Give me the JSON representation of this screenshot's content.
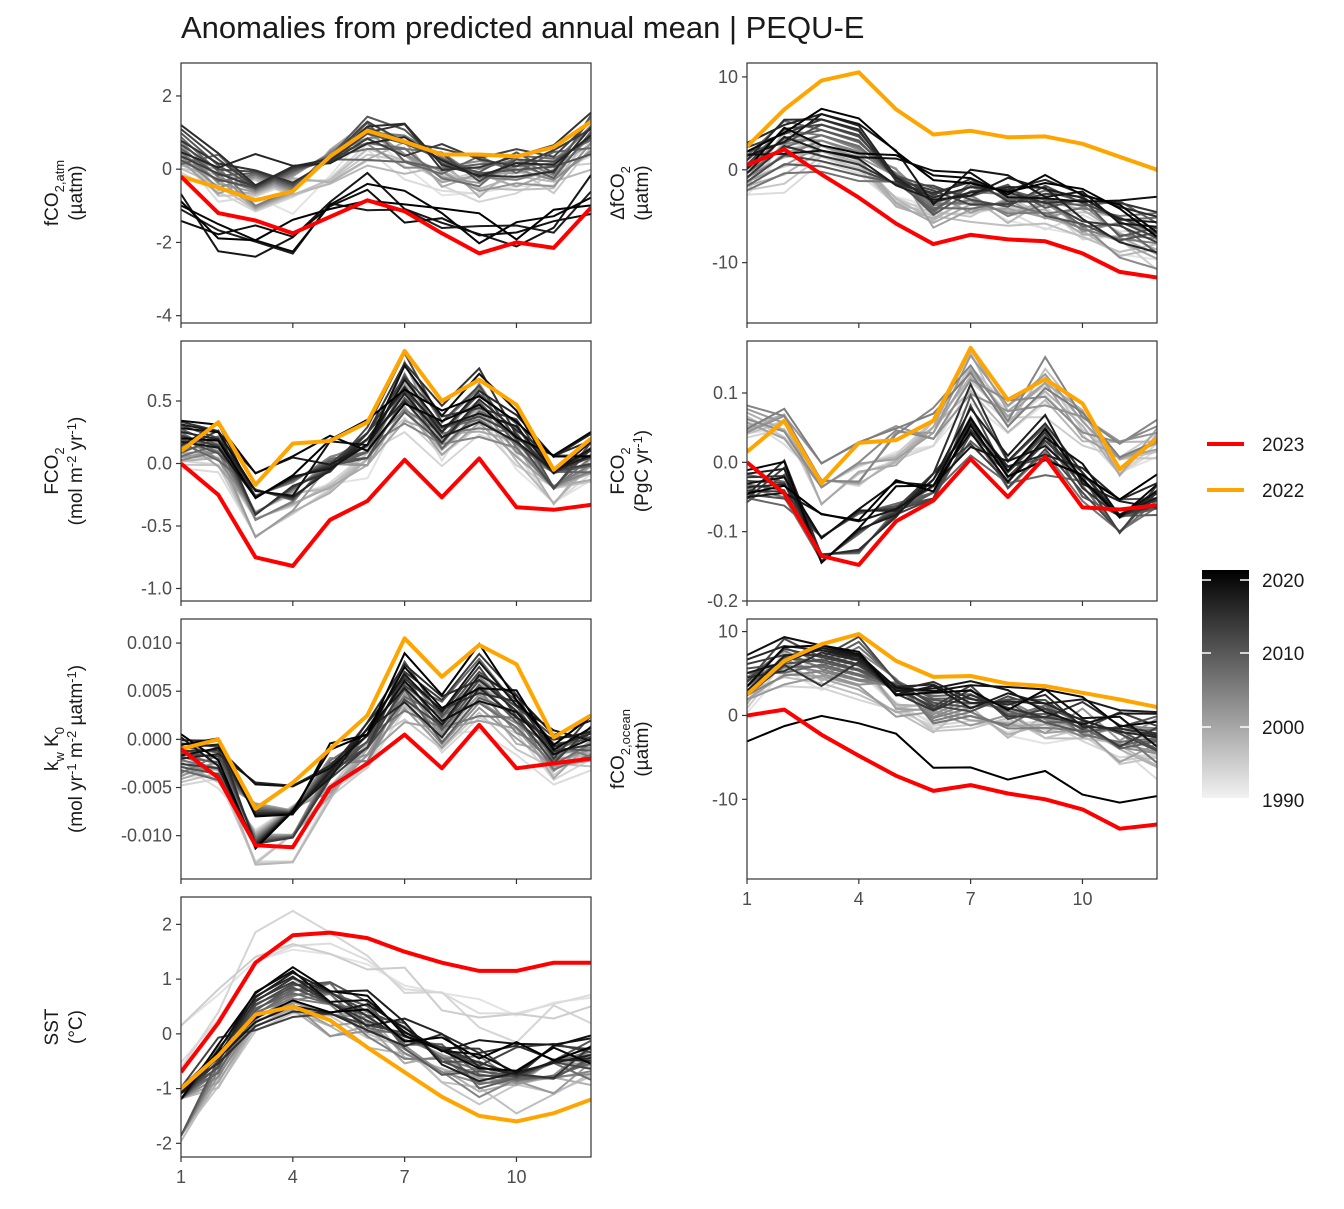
{
  "title": "Anomalies from predicted annual mean | PEQU-E",
  "legend": {
    "lines": [
      {
        "label": "2023",
        "color": "#ff0000"
      },
      {
        "label": "2022",
        "color": "#ffa500"
      }
    ],
    "colorbar": {
      "labels": [
        "2020",
        "2010",
        "2000",
        "1990"
      ],
      "values": [
        2020,
        2010,
        2000,
        1990
      ],
      "range": [
        1988,
        2021
      ],
      "low_color": "#f2f2f2",
      "high_color": "#000000"
    }
  },
  "colors": {
    "year_2023": "#ff0000",
    "year_2022": "#ffa500"
  },
  "chart_data": [
    {
      "id": "fco2_atm",
      "type": "line",
      "ylabel_lines": [
        "fCO2,atm",
        "(µatm)"
      ],
      "xlim": [
        1,
        12
      ],
      "ylim": [
        -4.2,
        2.9
      ],
      "yticks": [
        2,
        0,
        -2,
        -4
      ],
      "ytick_labels": [
        "2",
        "0",
        "-2",
        "-4"
      ],
      "xticks": [
        1,
        4,
        7,
        10
      ],
      "xtick_labels": [
        "1",
        "4",
        "7",
        "10"
      ],
      "series": [
        {
          "name": "2023",
          "x": [
            1,
            2,
            3,
            4,
            5,
            6,
            7,
            8,
            9,
            10,
            11,
            12
          ],
          "y": [
            -0.2,
            -1.2,
            -1.4,
            -1.75,
            -1.3,
            -0.85,
            -1.15,
            -1.75,
            -2.3,
            -2.0,
            -2.15,
            -1.05
          ]
        },
        {
          "name": "2022",
          "x": [
            1,
            2,
            3,
            4,
            5,
            6,
            7,
            8,
            9,
            10,
            11,
            12
          ],
          "y": [
            -0.2,
            -0.5,
            -0.85,
            -0.6,
            0.35,
            1.05,
            0.75,
            0.4,
            0.4,
            0.35,
            0.6,
            1.3
          ]
        }
      ]
    },
    {
      "id": "dfco2",
      "type": "line",
      "ylabel_lines": [
        "ΔfCO2",
        "(µatm)"
      ],
      "xlim": [
        1,
        12
      ],
      "ylim": [
        -16.5,
        11.5
      ],
      "yticks": [
        10,
        0,
        -10
      ],
      "ytick_labels": [
        "10",
        "0",
        "-10"
      ],
      "xticks": [
        1,
        4,
        7,
        10
      ],
      "xtick_labels": [
        "1",
        "4",
        "7",
        "10"
      ],
      "series": [
        {
          "name": "2023",
          "x": [
            1,
            2,
            3,
            4,
            5,
            6,
            7,
            8,
            9,
            10,
            11,
            12
          ],
          "y": [
            0.5,
            2.2,
            -0.5,
            -3.0,
            -5.8,
            -8.0,
            -7.0,
            -7.5,
            -7.7,
            -9.0,
            -11.0,
            -11.6
          ]
        },
        {
          "name": "2022",
          "x": [
            1,
            2,
            3,
            4,
            5,
            6,
            7,
            8,
            9,
            10,
            11,
            12
          ],
          "y": [
            2.5,
            6.5,
            9.6,
            10.5,
            6.5,
            3.8,
            4.2,
            3.5,
            3.6,
            2.8,
            1.4,
            0.0
          ]
        }
      ]
    },
    {
      "id": "fco2_flux_area",
      "type": "line",
      "ylabel_lines": [
        "FCO2",
        "(mol m-2 yr-1)"
      ],
      "xlim": [
        1,
        12
      ],
      "ylim": [
        -1.1,
        0.98
      ],
      "yticks": [
        0.5,
        0.0,
        -0.5,
        -1.0
      ],
      "ytick_labels": [
        "0.5",
        "0.0",
        "-0.5",
        "-1.0"
      ],
      "xticks": [
        1,
        4,
        7,
        10
      ],
      "xtick_labels": [
        "1",
        "4",
        "7",
        "10"
      ],
      "series": [
        {
          "name": "2023",
          "x": [
            1,
            2,
            3,
            4,
            5,
            6,
            7,
            8,
            9,
            10,
            11,
            12
          ],
          "y": [
            0.0,
            -0.25,
            -0.75,
            -0.82,
            -0.45,
            -0.3,
            0.03,
            -0.27,
            0.04,
            -0.35,
            -0.37,
            -0.33
          ]
        },
        {
          "name": "2022",
          "x": [
            1,
            2,
            3,
            4,
            5,
            6,
            7,
            8,
            9,
            10,
            11,
            12
          ],
          "y": [
            0.1,
            0.33,
            -0.17,
            0.16,
            0.18,
            0.33,
            0.9,
            0.5,
            0.67,
            0.47,
            -0.05,
            0.2
          ]
        }
      ]
    },
    {
      "id": "fco2_flux_total",
      "type": "line",
      "ylabel_lines": [
        "FCO2",
        "(PgC yr-1)"
      ],
      "xlim": [
        1,
        12
      ],
      "ylim": [
        -0.2,
        0.175
      ],
      "yticks": [
        0.1,
        0.0,
        -0.1,
        -0.2
      ],
      "ytick_labels": [
        "0.1",
        "0.0",
        "-0.1",
        "-0.2"
      ],
      "xticks": [
        1,
        4,
        7,
        10
      ],
      "xtick_labels": [
        "1",
        "4",
        "7",
        "10"
      ],
      "series": [
        {
          "name": "2023",
          "x": [
            1,
            2,
            3,
            4,
            5,
            6,
            7,
            8,
            9,
            10,
            11,
            12
          ],
          "y": [
            0.0,
            -0.045,
            -0.135,
            -0.148,
            -0.085,
            -0.055,
            0.005,
            -0.05,
            0.008,
            -0.065,
            -0.068,
            -0.062
          ]
        },
        {
          "name": "2022",
          "x": [
            1,
            2,
            3,
            4,
            5,
            6,
            7,
            8,
            9,
            10,
            11,
            12
          ],
          "y": [
            0.015,
            0.06,
            -0.03,
            0.028,
            0.032,
            0.06,
            0.165,
            0.09,
            0.12,
            0.085,
            -0.01,
            0.035
          ]
        }
      ]
    },
    {
      "id": "kw_k0",
      "type": "line",
      "ylabel_lines": [
        "kw K0",
        "(mol yr-1 m-2 µatm-1)"
      ],
      "xlim": [
        1,
        12
      ],
      "ylim": [
        -0.0145,
        0.0125
      ],
      "yticks": [
        0.01,
        0.005,
        0.0,
        -0.005,
        -0.01
      ],
      "ytick_labels": [
        "0.010",
        "0.005",
        "0.000",
        "-0.005",
        "-0.010"
      ],
      "xticks": [
        1,
        4,
        7,
        10
      ],
      "xtick_labels": [
        "1",
        "4",
        "7",
        "10"
      ],
      "series": [
        {
          "name": "2023",
          "x": [
            1,
            2,
            3,
            4,
            5,
            6,
            7,
            8,
            9,
            10,
            11,
            12
          ],
          "y": [
            -0.001,
            -0.004,
            -0.011,
            -0.0112,
            -0.005,
            -0.0025,
            0.0005,
            -0.003,
            0.0015,
            -0.003,
            -0.0025,
            -0.002
          ]
        },
        {
          "name": "2022",
          "x": [
            1,
            2,
            3,
            4,
            5,
            6,
            7,
            8,
            9,
            10,
            11,
            12
          ],
          "y": [
            -0.001,
            0.0,
            -0.0072,
            -0.0045,
            -0.001,
            0.0025,
            0.0105,
            0.0065,
            0.0098,
            0.0078,
            0.0002,
            0.0025
          ]
        }
      ]
    },
    {
      "id": "fco2_ocean",
      "type": "line",
      "ylabel_lines": [
        "fCO2,ocean",
        "(µatm)"
      ],
      "xlim": [
        1,
        12
      ],
      "ylim": [
        -19.5,
        11.5
      ],
      "yticks": [
        10,
        0,
        -10
      ],
      "ytick_labels": [
        "10",
        "0",
        "-10"
      ],
      "xticks": [
        1,
        4,
        7,
        10
      ],
      "xtick_labels": [
        "1",
        "4",
        "7",
        "10"
      ],
      "series": [
        {
          "name": "2023",
          "x": [
            1,
            2,
            3,
            4,
            5,
            6,
            7,
            8,
            9,
            10,
            11,
            12
          ],
          "y": [
            0.0,
            0.7,
            -2.3,
            -4.8,
            -7.2,
            -9.0,
            -8.3,
            -9.3,
            -10.0,
            -11.2,
            -13.5,
            -13.0
          ]
        },
        {
          "name": "2022",
          "x": [
            1,
            2,
            3,
            4,
            5,
            6,
            7,
            8,
            9,
            10,
            11,
            12
          ],
          "y": [
            2.5,
            6.5,
            8.5,
            9.7,
            6.5,
            4.6,
            4.7,
            3.8,
            3.5,
            2.7,
            1.9,
            1.0
          ]
        }
      ]
    },
    {
      "id": "sst",
      "type": "line",
      "ylabel_lines": [
        "SST",
        "(°C)"
      ],
      "xlim": [
        1,
        12
      ],
      "ylim": [
        -2.25,
        2.5
      ],
      "yticks": [
        2,
        1,
        0,
        -1,
        -2
      ],
      "ytick_labels": [
        "2",
        "1",
        "0",
        "-1",
        "-2"
      ],
      "xticks": [
        1,
        4,
        7,
        10
      ],
      "xtick_labels": [
        "1",
        "4",
        "7",
        "10"
      ],
      "series": [
        {
          "name": "2023",
          "x": [
            1,
            2,
            3,
            4,
            5,
            6,
            7,
            8,
            9,
            10,
            11,
            12
          ],
          "y": [
            -0.7,
            0.2,
            1.3,
            1.8,
            1.85,
            1.75,
            1.5,
            1.3,
            1.15,
            1.15,
            1.3,
            1.3
          ]
        },
        {
          "name": "2022",
          "x": [
            1,
            2,
            3,
            4,
            5,
            6,
            7,
            8,
            9,
            10,
            11,
            12
          ],
          "y": [
            -1.0,
            -0.4,
            0.35,
            0.5,
            0.25,
            -0.25,
            -0.7,
            -1.15,
            -1.5,
            -1.6,
            -1.45,
            -1.2
          ]
        }
      ]
    }
  ]
}
